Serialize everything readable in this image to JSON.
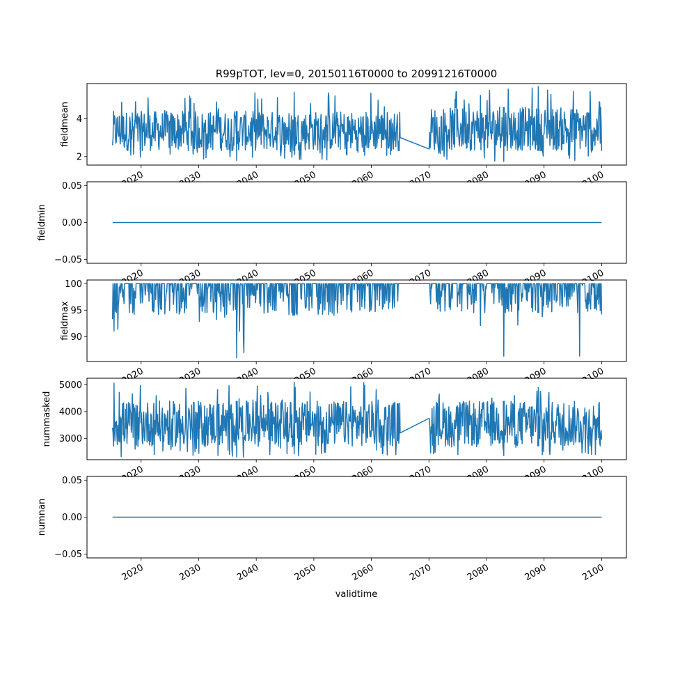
{
  "figure": {
    "title": "R99pTOT, lev=0, 20150116T0000 to 20991216T0000",
    "xlabel": "validtime"
  },
  "chart_data": [
    {
      "type": "line",
      "ylabel": "fieldmean",
      "xlim": [
        2010.6,
        2104.3
      ],
      "ylim": [
        1.55,
        5.85
      ],
      "yticks": [
        2,
        4
      ],
      "ytick_labels": [
        "2",
        "4"
      ],
      "xticks": [
        2020,
        2030,
        2040,
        2050,
        2060,
        2070,
        2080,
        2090,
        2100
      ],
      "xtick_labels": [
        "2020",
        "2030",
        "2040",
        "2050",
        "2060",
        "2070",
        "2080",
        "2090",
        "2100"
      ],
      "color": "#1f77b4",
      "series": [
        {
          "x": [
            2015.04,
            2065.0,
            2070.04,
            2100.0
          ],
          "y": [
            2.6,
            3.0,
            2.4,
            2.3
          ],
          "band": {
            "segments": [
              {
                "start": 2015.04,
                "end": 2065.0,
                "low": 1.8,
                "high": 5.4,
                "typical_low": 2.3,
                "typical_high": 4.4
              },
              {
                "start": 2070.04,
                "end": 2100.0,
                "low": 1.75,
                "high": 5.7,
                "typical_low": 2.3,
                "typical_high": 4.6
              }
            ]
          }
        }
      ]
    },
    {
      "type": "line",
      "ylabel": "fieldmin",
      "xlim": [
        2010.6,
        2104.3
      ],
      "ylim": [
        -0.055,
        0.055
      ],
      "yticks": [
        -0.05,
        0.0,
        0.05
      ],
      "ytick_labels": [
        "−0.05",
        "0.00",
        "0.05"
      ],
      "xticks": [
        2020,
        2030,
        2040,
        2050,
        2060,
        2070,
        2080,
        2090,
        2100
      ],
      "xtick_labels": [
        "2020",
        "2030",
        "2040",
        "2050",
        "2060",
        "2070",
        "2080",
        "2090",
        "2100"
      ],
      "color": "#1f77b4",
      "series": [
        {
          "x": [
            2015.04,
            2100.0
          ],
          "y": [
            0.0,
            0.0
          ]
        }
      ]
    },
    {
      "type": "line",
      "ylabel": "fieldmax",
      "xlim": [
        2010.6,
        2104.3
      ],
      "ylim": [
        85.3,
        100.7
      ],
      "yticks": [
        90,
        95,
        100
      ],
      "ytick_labels": [
        "90",
        "95",
        "100"
      ],
      "xticks": [
        2020,
        2030,
        2040,
        2050,
        2060,
        2070,
        2080,
        2090,
        2100
      ],
      "xtick_labels": [
        "2020",
        "2030",
        "2040",
        "2050",
        "2060",
        "2070",
        "2080",
        "2090",
        "2100"
      ],
      "color": "#1f77b4",
      "series": [
        {
          "x": [
            2015.04,
            2065.0,
            2070.04,
            2100.0
          ],
          "y": [
            93.3,
            100.0,
            100.0,
            94.2
          ],
          "band": {
            "segments": [
              {
                "start": 2015.04,
                "end": 2065.0,
                "low": 86.0,
                "high": 100.0,
                "typical_low": 94.0,
                "typical_high": 100.0
              },
              {
                "start": 2070.04,
                "end": 2100.0,
                "low": 86.3,
                "high": 100.0,
                "typical_low": 94.5,
                "typical_high": 100.0
              }
            ]
          }
        }
      ]
    },
    {
      "type": "line",
      "ylabel": "nummasked",
      "xlim": [
        2010.6,
        2104.3
      ],
      "ylim": [
        2200,
        5250
      ],
      "yticks": [
        3000,
        4000,
        5000
      ],
      "ytick_labels": [
        "3000",
        "4000",
        "5000"
      ],
      "xticks": [
        2020,
        2030,
        2040,
        2050,
        2060,
        2070,
        2080,
        2090,
        2100
      ],
      "xtick_labels": [
        "2020",
        "2030",
        "2040",
        "2050",
        "2060",
        "2070",
        "2080",
        "2090",
        "2100"
      ],
      "color": "#1f77b4",
      "series": [
        {
          "x": [
            2015.04,
            2065.0,
            2070.04,
            2100.0
          ],
          "y": [
            3400,
            3200,
            3750,
            2950
          ],
          "band": {
            "segments": [
              {
                "start": 2015.04,
                "end": 2065.0,
                "low": 2300,
                "high": 5100,
                "typical_low": 2700,
                "typical_high": 4400
              },
              {
                "start": 2070.04,
                "end": 2100.0,
                "low": 2350,
                "high": 4900,
                "typical_low": 2700,
                "typical_high": 4400
              }
            ]
          }
        }
      ]
    },
    {
      "type": "line",
      "ylabel": "numnan",
      "xlim": [
        2010.6,
        2104.3
      ],
      "ylim": [
        -0.055,
        0.055
      ],
      "yticks": [
        -0.05,
        0.0,
        0.05
      ],
      "ytick_labels": [
        "−0.05",
        "0.00",
        "0.05"
      ],
      "xticks": [
        2020,
        2030,
        2040,
        2050,
        2060,
        2070,
        2080,
        2090,
        2100
      ],
      "xtick_labels": [
        "2020",
        "2030",
        "2040",
        "2050",
        "2060",
        "2070",
        "2080",
        "2090",
        "2100"
      ],
      "color": "#1f77b4",
      "series": [
        {
          "x": [
            2015.04,
            2100.0
          ],
          "y": [
            0.0,
            0.0
          ]
        }
      ]
    }
  ]
}
